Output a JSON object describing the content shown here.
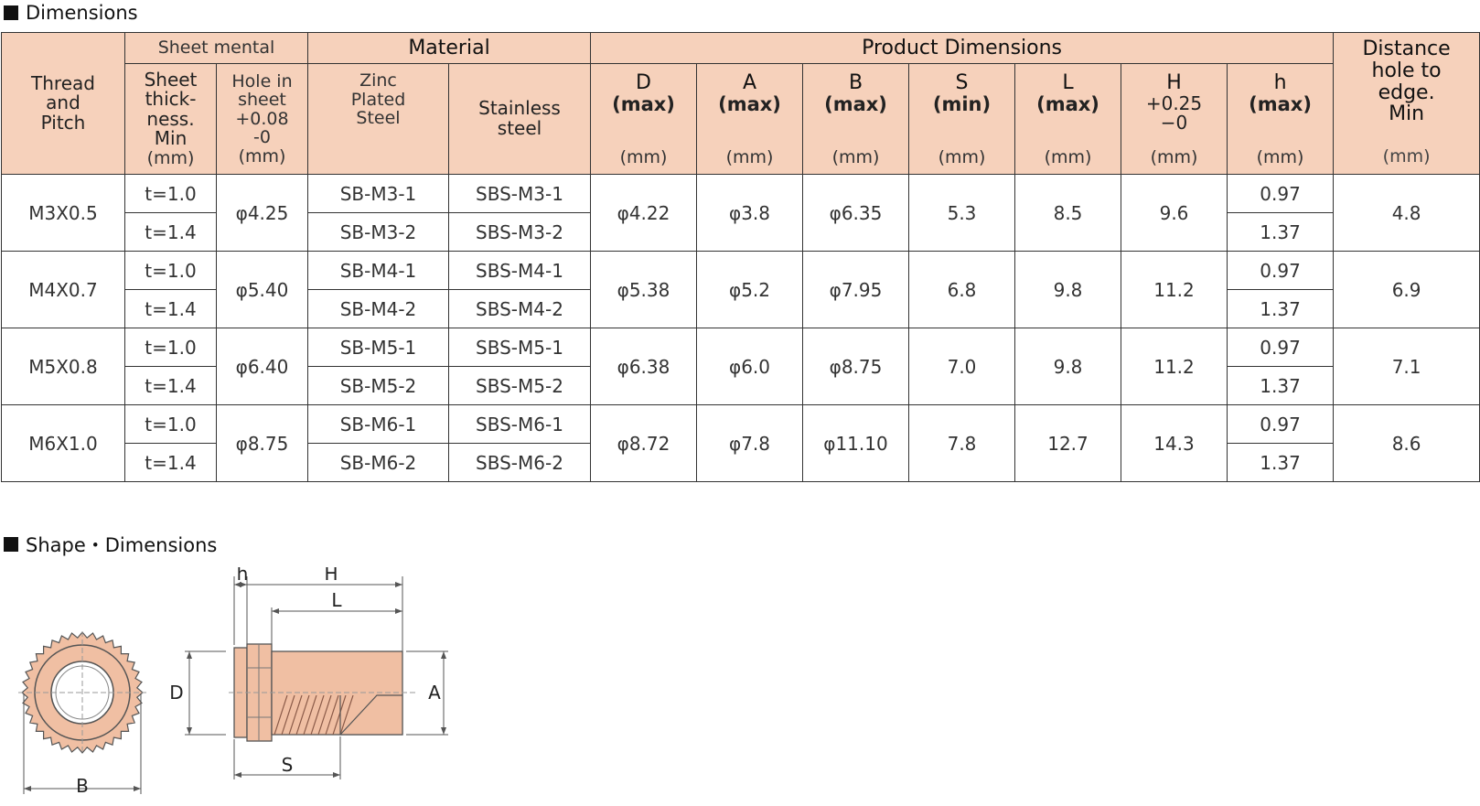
{
  "sections": {
    "dimensions_title": "Dimensions",
    "shape_title": "Shape・Dimensions"
  },
  "table": {
    "groups": {
      "thread": [
        "Thread",
        "and",
        "Pitch"
      ],
      "sheet": "Sheet mental",
      "material": "Material",
      "product": "Product Dimensions",
      "distance": [
        "Distance",
        "hole to",
        "edge.",
        "Min"
      ]
    },
    "sub": {
      "sheet_thick": [
        "Sheet",
        "thick-",
        "ness.",
        "Min"
      ],
      "hole": [
        "Hole in",
        "sheet",
        "+0.08",
        "-0"
      ],
      "zinc": [
        "Zinc",
        "Plated",
        "Steel"
      ],
      "stainless": [
        "Stainless",
        "steel"
      ],
      "D": [
        "D",
        "(max)"
      ],
      "A": [
        "A",
        "(max)"
      ],
      "B": [
        "B",
        "(max)"
      ],
      "S": [
        "S",
        "(min)"
      ],
      "L": [
        "L",
        "(max)"
      ],
      "H": [
        "H",
        "+0.25",
        "−0"
      ],
      "h": [
        "h",
        "(max)"
      ]
    },
    "unit": "(mm)",
    "rows": [
      {
        "thread": "M3X0.5",
        "t1": "t=1.0",
        "t2": "t=1.4",
        "hole": "φ4.25",
        "zinc1": "SB-M3-1",
        "zinc2": "SB-M3-2",
        "ss1": "SBS-M3-1",
        "ss2": "SBS-M3-2",
        "D": "φ4.22",
        "A": "φ3.8",
        "B": "φ6.35",
        "S": "5.3",
        "L": "8.5",
        "H": "9.6",
        "h1": "0.97",
        "h2": "1.37",
        "dist": "4.8"
      },
      {
        "thread": "M4X0.7",
        "t1": "t=1.0",
        "t2": "t=1.4",
        "hole": "φ5.40",
        "zinc1": "SB-M4-1",
        "zinc2": "SB-M4-2",
        "ss1": "SBS-M4-1",
        "ss2": "SBS-M4-2",
        "D": "φ5.38",
        "A": "φ5.2",
        "B": "φ7.95",
        "S": "6.8",
        "L": "9.8",
        "H": "11.2",
        "h1": "0.97",
        "h2": "1.37",
        "dist": "6.9"
      },
      {
        "thread": "M5X0.8",
        "t1": "t=1.0",
        "t2": "t=1.4",
        "hole": "φ6.40",
        "zinc1": "SB-M5-1",
        "zinc2": "SB-M5-2",
        "ss1": "SBS-M5-1",
        "ss2": "SBS-M5-2",
        "D": "φ6.38",
        "A": "φ6.0",
        "B": "φ8.75",
        "S": "7.0",
        "L": "9.8",
        "H": "11.2",
        "h1": "0.97",
        "h2": "1.37",
        "dist": "7.1"
      },
      {
        "thread": "M6X1.0",
        "t1": "t=1.0",
        "t2": "t=1.4",
        "hole": "φ8.75",
        "zinc1": "SB-M6-1",
        "zinc2": "SB-M6-2",
        "ss1": "SBS-M6-1",
        "ss2": "SBS-M6-2",
        "D": "φ8.72",
        "A": "φ7.8",
        "B": "φ11.10",
        "S": "7.8",
        "L": "12.7",
        "H": "14.3",
        "h1": "0.97",
        "h2": "1.37",
        "dist": "8.6"
      }
    ]
  },
  "drawing_labels": {
    "h": "h",
    "H": "H",
    "L": "L",
    "D": "D",
    "A": "A",
    "B": "B",
    "S": "S"
  },
  "colors": {
    "header_fill": "#f6d1bb",
    "part_fill": "#f0bfa3",
    "part_outline": "#555555"
  }
}
